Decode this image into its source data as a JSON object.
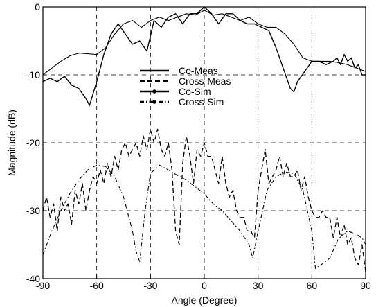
{
  "chart_data": {
    "type": "line",
    "xlabel": "Angle (Degree)",
    "ylabel": "Magnitude (dB)",
    "xlim": [
      -90,
      90
    ],
    "ylim": [
      -40,
      0
    ],
    "xticks": [
      -90,
      -60,
      -30,
      0,
      30,
      60,
      90
    ],
    "yticks": [
      0,
      -10,
      -20,
      -30,
      -40
    ],
    "xtick_labels": [
      "-90",
      "-60",
      "-30",
      "0",
      "30",
      "60",
      "90"
    ],
    "ytick_labels": [
      "0",
      "-10",
      "-20",
      "-30",
      "-40"
    ],
    "grid": true,
    "legend_position": "center",
    "series": [
      {
        "name": "Co-Meas",
        "style": "solid",
        "x": [
          -90,
          -86,
          -82,
          -78,
          -74,
          -70,
          -66,
          -64,
          -60,
          -56,
          -52,
          -48,
          -44,
          -40,
          -36,
          -32,
          -28,
          -24,
          -20,
          -16,
          -12,
          -8,
          -4,
          0,
          4,
          8,
          12,
          16,
          20,
          24,
          28,
          32,
          36,
          40,
          44,
          48,
          50,
          52,
          56,
          60,
          64,
          68,
          72,
          74,
          76,
          78,
          80,
          82,
          84,
          86,
          88,
          90
        ],
        "y": [
          -11,
          -10.5,
          -11,
          -10.2,
          -11.5,
          -12,
          -13.5,
          -14.5,
          -11,
          -7,
          -4,
          -2.5,
          -4,
          -5.5,
          -5,
          -6.5,
          -2,
          -3,
          -1.5,
          -1,
          -2.5,
          -1,
          -1,
          0,
          -1,
          -2.5,
          -1,
          -1,
          -2,
          -2.5,
          -2.5,
          -3,
          -3.5,
          -6,
          -9,
          -12,
          -12.5,
          -11,
          -9.5,
          -8,
          -8,
          -8.5,
          -8,
          -7.5,
          -8.5,
          -7,
          -8,
          -7.5,
          -9,
          -8.5,
          -10,
          -10
        ]
      },
      {
        "name": "Co-Sim",
        "style": "solid-marker",
        "x": [
          -90,
          -85,
          -80,
          -75,
          -70,
          -65,
          -60,
          -55,
          -50,
          -45,
          -40,
          -35,
          -30,
          -25,
          -20,
          -15,
          -10,
          -5,
          0,
          5,
          10,
          15,
          20,
          25,
          30,
          35,
          40,
          45,
          50,
          55,
          60,
          65,
          70,
          75,
          80,
          85,
          90
        ],
        "y": [
          -10,
          -9,
          -8,
          -7.2,
          -6.8,
          -6.9,
          -7,
          -6,
          -4,
          -2.5,
          -2,
          -3,
          -2,
          -1.5,
          -2,
          -1.5,
          -1,
          -1.2,
          -0.5,
          -1.2,
          -1,
          -1.5,
          -2,
          -1.5,
          -2.5,
          -3,
          -3,
          -4,
          -5.5,
          -7.5,
          -8,
          -8,
          -8,
          -8.2,
          -8.5,
          -9,
          -9.5
        ]
      },
      {
        "name": "Cross-Meas",
        "style": "dashed",
        "x": [
          -90,
          -88,
          -86,
          -84,
          -82,
          -80,
          -78,
          -76,
          -74,
          -72,
          -70,
          -68,
          -66,
          -64,
          -62,
          -60,
          -58,
          -56,
          -54,
          -52,
          -50,
          -48,
          -46,
          -44,
          -42,
          -40,
          -38,
          -36,
          -34,
          -32,
          -30,
          -28,
          -26,
          -24,
          -22,
          -20,
          -18,
          -16,
          -14,
          -12,
          -10,
          -8,
          -6,
          -4,
          -2,
          0,
          2,
          4,
          6,
          8,
          10,
          12,
          14,
          16,
          18,
          20,
          22,
          24,
          26,
          28,
          30,
          32,
          34,
          36,
          38,
          40,
          42,
          44,
          46,
          48,
          50,
          52,
          54,
          56,
          58,
          60,
          62,
          64,
          66,
          68,
          70,
          72,
          74,
          76,
          78,
          80,
          82,
          84,
          86,
          88,
          90
        ],
        "y": [
          -30,
          -28,
          -31,
          -29,
          -33,
          -28,
          -30,
          -29,
          -32,
          -27,
          -29,
          -26,
          -30,
          -27,
          -25,
          -26,
          -24,
          -26,
          -23,
          -25,
          -22,
          -24,
          -21,
          -20,
          -22,
          -21,
          -20,
          -22,
          -19,
          -21,
          -18,
          -20,
          -18,
          -21,
          -22,
          -20,
          -24,
          -33,
          -35,
          -23,
          -19,
          -22,
          -26,
          -21,
          -22,
          -20,
          -22,
          -22,
          -24,
          -26,
          -22,
          -26,
          -28,
          -27,
          -30,
          -31,
          -31,
          -33,
          -33,
          -34,
          -27,
          -24,
          -21,
          -26,
          -25,
          -24,
          -22,
          -25,
          -23,
          -25,
          -25,
          -24,
          -27,
          -25,
          -28,
          -30,
          -31,
          -31,
          -30,
          -31,
          -31,
          -34,
          -31,
          -34,
          -32,
          -35,
          -34,
          -37,
          -38,
          -35,
          -39
        ]
      },
      {
        "name": "Cross-Sim",
        "style": "dashdot",
        "x": [
          -90,
          -85,
          -80,
          -75,
          -70,
          -65,
          -60,
          -55,
          -50,
          -45,
          -40,
          -38,
          -36,
          -33,
          -30,
          -25,
          -20,
          -15,
          -10,
          -5,
          0,
          5,
          10,
          15,
          20,
          25,
          27,
          30,
          35,
          40,
          45,
          50,
          55,
          60,
          62,
          65,
          70,
          75,
          80,
          85,
          88,
          90
        ],
        "y": [
          -36.5,
          -33,
          -30,
          -27.5,
          -25.5,
          -24,
          -23.3,
          -23.5,
          -25,
          -28,
          -33,
          -36,
          -37.5,
          -30,
          -24.5,
          -23.3,
          -24,
          -24.8,
          -25.5,
          -26.5,
          -27.5,
          -29,
          -30,
          -31.5,
          -33,
          -35,
          -37,
          -33,
          -27,
          -25,
          -24.3,
          -24.5,
          -27,
          -33,
          -38.5,
          -38,
          -37,
          -34,
          -33,
          -33.5,
          -34,
          -35
        ]
      }
    ]
  }
}
